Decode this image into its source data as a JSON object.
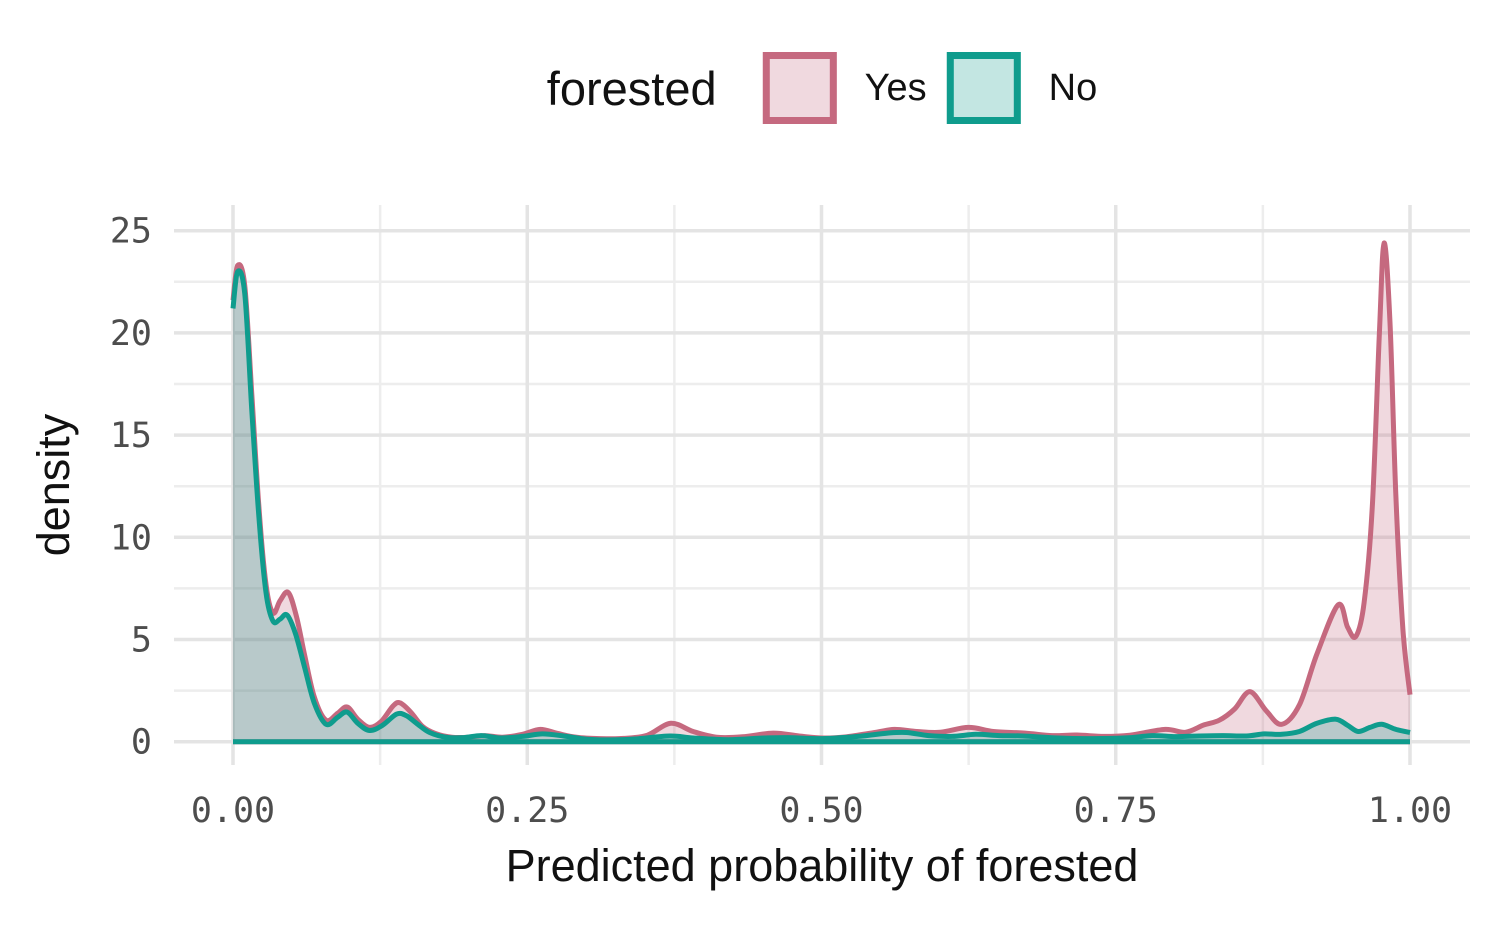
{
  "chart_data": {
    "type": "area",
    "subtype": "kernel-density",
    "xlabel": "Predicted probability of forested",
    "ylabel": "density",
    "xlim": [
      0,
      1
    ],
    "ylim": [
      0,
      25
    ],
    "grid": "on",
    "x_ticks": {
      "labels": [
        "0.00",
        "0.25",
        "0.50",
        "0.75",
        "1.00"
      ],
      "values": [
        0,
        0.25,
        0.5,
        0.75,
        1.0
      ]
    },
    "y_ticks": {
      "labels": [
        "0",
        "5",
        "10",
        "15",
        "20",
        "25"
      ],
      "values": [
        0,
        5,
        10,
        15,
        20,
        25
      ]
    },
    "x_minor_gridlines": [
      0.125,
      0.375,
      0.625,
      0.875
    ],
    "y_minor_gridlines": [
      2.5,
      7.5,
      12.5,
      17.5,
      22.5
    ],
    "legend": {
      "title": "forested",
      "position": "top",
      "entries": [
        {
          "label": "Yes",
          "color": "#C5697F"
        },
        {
          "label": "No",
          "color": "#0F9C8D"
        }
      ]
    },
    "colors": {
      "yes_line": "#C5697F",
      "no_line": "#0F9C8D",
      "fill_alpha": 0.25,
      "tick_label": "#4D4D4D",
      "axis_title": "#111111",
      "grid_major": "#E4E4E4",
      "grid_minor": "#EDEDED"
    },
    "series": [
      {
        "name": "Yes",
        "color": "#C5697F",
        "points": [
          [
            0.0,
            21.6
          ],
          [
            0.004,
            23.3
          ],
          [
            0.01,
            22.3
          ],
          [
            0.016,
            17.0
          ],
          [
            0.022,
            11.5
          ],
          [
            0.028,
            7.7
          ],
          [
            0.034,
            6.3
          ],
          [
            0.04,
            6.9
          ],
          [
            0.047,
            7.3
          ],
          [
            0.054,
            6.1
          ],
          [
            0.061,
            4.2
          ],
          [
            0.069,
            2.2
          ],
          [
            0.079,
            1.05
          ],
          [
            0.089,
            1.4
          ],
          [
            0.097,
            1.7
          ],
          [
            0.106,
            1.1
          ],
          [
            0.116,
            0.7
          ],
          [
            0.126,
            1.0
          ],
          [
            0.136,
            1.75
          ],
          [
            0.142,
            1.9
          ],
          [
            0.151,
            1.45
          ],
          [
            0.161,
            0.75
          ],
          [
            0.172,
            0.4
          ],
          [
            0.186,
            0.22
          ],
          [
            0.2,
            0.22
          ],
          [
            0.214,
            0.3
          ],
          [
            0.229,
            0.22
          ],
          [
            0.246,
            0.36
          ],
          [
            0.261,
            0.6
          ],
          [
            0.276,
            0.4
          ],
          [
            0.292,
            0.22
          ],
          [
            0.312,
            0.15
          ],
          [
            0.332,
            0.16
          ],
          [
            0.352,
            0.32
          ],
          [
            0.372,
            0.9
          ],
          [
            0.391,
            0.5
          ],
          [
            0.411,
            0.22
          ],
          [
            0.433,
            0.24
          ],
          [
            0.459,
            0.42
          ],
          [
            0.481,
            0.28
          ],
          [
            0.501,
            0.18
          ],
          [
            0.521,
            0.24
          ],
          [
            0.546,
            0.46
          ],
          [
            0.562,
            0.6
          ],
          [
            0.581,
            0.5
          ],
          [
            0.601,
            0.46
          ],
          [
            0.625,
            0.7
          ],
          [
            0.646,
            0.5
          ],
          [
            0.673,
            0.42
          ],
          [
            0.696,
            0.3
          ],
          [
            0.717,
            0.33
          ],
          [
            0.74,
            0.26
          ],
          [
            0.762,
            0.32
          ],
          [
            0.792,
            0.6
          ],
          [
            0.809,
            0.46
          ],
          [
            0.825,
            0.82
          ],
          [
            0.838,
            1.05
          ],
          [
            0.851,
            1.6
          ],
          [
            0.864,
            2.45
          ],
          [
            0.878,
            1.5
          ],
          [
            0.891,
            0.85
          ],
          [
            0.906,
            1.8
          ],
          [
            0.921,
            4.3
          ],
          [
            0.939,
            6.7
          ],
          [
            0.947,
            5.6
          ],
          [
            0.954,
            5.15
          ],
          [
            0.961,
            6.8
          ],
          [
            0.968,
            11.5
          ],
          [
            0.974,
            20.0
          ],
          [
            0.978,
            24.4
          ],
          [
            0.983,
            20.5
          ],
          [
            0.988,
            12.0
          ],
          [
            0.994,
            5.5
          ],
          [
            1.0,
            2.3
          ]
        ]
      },
      {
        "name": "No",
        "color": "#0F9C8D",
        "points": [
          [
            0.0,
            21.2
          ],
          [
            0.004,
            23.0
          ],
          [
            0.01,
            21.9
          ],
          [
            0.016,
            16.2
          ],
          [
            0.022,
            11.0
          ],
          [
            0.028,
            7.3
          ],
          [
            0.034,
            5.9
          ],
          [
            0.04,
            6.0
          ],
          [
            0.046,
            6.2
          ],
          [
            0.053,
            5.3
          ],
          [
            0.061,
            3.6
          ],
          [
            0.069,
            1.9
          ],
          [
            0.079,
            0.85
          ],
          [
            0.089,
            1.2
          ],
          [
            0.097,
            1.45
          ],
          [
            0.106,
            0.9
          ],
          [
            0.116,
            0.55
          ],
          [
            0.127,
            0.8
          ],
          [
            0.139,
            1.35
          ],
          [
            0.147,
            1.28
          ],
          [
            0.157,
            0.85
          ],
          [
            0.167,
            0.45
          ],
          [
            0.181,
            0.22
          ],
          [
            0.196,
            0.2
          ],
          [
            0.211,
            0.3
          ],
          [
            0.227,
            0.18
          ],
          [
            0.246,
            0.26
          ],
          [
            0.263,
            0.38
          ],
          [
            0.281,
            0.28
          ],
          [
            0.301,
            0.12
          ],
          [
            0.321,
            0.09
          ],
          [
            0.341,
            0.13
          ],
          [
            0.371,
            0.28
          ],
          [
            0.391,
            0.18
          ],
          [
            0.421,
            0.1
          ],
          [
            0.451,
            0.18
          ],
          [
            0.471,
            0.2
          ],
          [
            0.501,
            0.15
          ],
          [
            0.531,
            0.26
          ],
          [
            0.556,
            0.42
          ],
          [
            0.572,
            0.45
          ],
          [
            0.591,
            0.3
          ],
          [
            0.611,
            0.26
          ],
          [
            0.631,
            0.36
          ],
          [
            0.651,
            0.3
          ],
          [
            0.671,
            0.28
          ],
          [
            0.701,
            0.18
          ],
          [
            0.731,
            0.15
          ],
          [
            0.761,
            0.19
          ],
          [
            0.781,
            0.3
          ],
          [
            0.801,
            0.25
          ],
          [
            0.821,
            0.28
          ],
          [
            0.841,
            0.3
          ],
          [
            0.861,
            0.28
          ],
          [
            0.876,
            0.38
          ],
          [
            0.891,
            0.36
          ],
          [
            0.906,
            0.5
          ],
          [
            0.921,
            0.9
          ],
          [
            0.937,
            1.1
          ],
          [
            0.947,
            0.8
          ],
          [
            0.956,
            0.5
          ],
          [
            0.966,
            0.7
          ],
          [
            0.976,
            0.85
          ],
          [
            0.988,
            0.6
          ],
          [
            1.0,
            0.45
          ]
        ]
      }
    ]
  }
}
